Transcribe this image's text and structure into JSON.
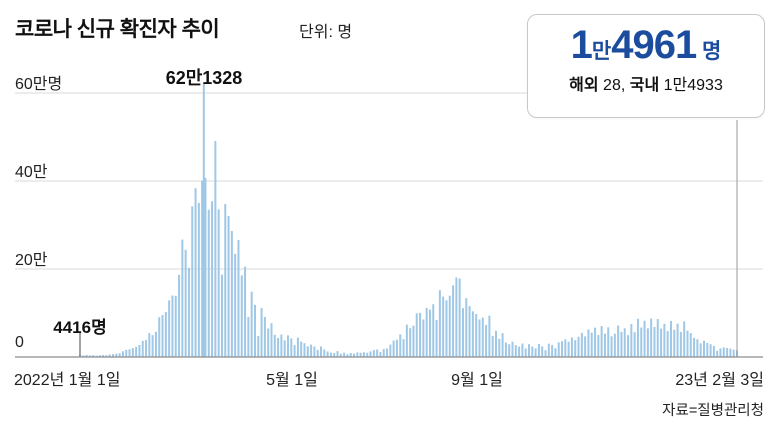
{
  "colors": {
    "bar": "#9fc7e6",
    "accent_blue": "#1b4c9e",
    "grid": "#d8d8d8",
    "axis": "#8c8c8c",
    "connector": "#9a9a9a",
    "leader": "#444444"
  },
  "callout": {
    "num1": "1",
    "man": "만",
    "num2": "4961",
    "unit": " 명",
    "overseas_label": "해외",
    "overseas_value": " 28, ",
    "domestic_label": "국내",
    "domestic_value": " 1만4933"
  },
  "source": "자료=질병관리청",
  "chart_data": {
    "type": "bar",
    "title": "코로나 신규 확진자 추이",
    "unit_label": "단위: 명",
    "ylabel_ticks": [
      "60만명",
      "40만",
      "20만",
      "0"
    ],
    "y_values": [
      600000,
      400000,
      200000,
      0
    ],
    "ylim": [
      0,
      621328
    ],
    "total_days": 398,
    "x_ticks": [
      {
        "label": "2022년 1월 1일",
        "day": 0
      },
      {
        "label": "5월 1일",
        "day": 120
      },
      {
        "label": "9월 1일",
        "day": 243
      },
      {
        "label": "23년 2월 3일",
        "day": 398
      }
    ],
    "annotations": [
      {
        "text": "4416명",
        "day": 0,
        "value": 4416
      },
      {
        "text": "62만1328",
        "day": 75,
        "value": 621328
      }
    ],
    "points": [
      [
        0,
        4416
      ],
      [
        2,
        3833
      ],
      [
        4,
        4875
      ],
      [
        6,
        3717
      ],
      [
        8,
        4384
      ],
      [
        10,
        3094
      ],
      [
        12,
        4165
      ],
      [
        14,
        4542
      ],
      [
        16,
        4193
      ],
      [
        18,
        5805
      ],
      [
        20,
        6601
      ],
      [
        22,
        7513
      ],
      [
        24,
        8571
      ],
      [
        26,
        13012
      ],
      [
        28,
        16096
      ],
      [
        30,
        17532
      ],
      [
        32,
        20270
      ],
      [
        34,
        22907
      ],
      [
        36,
        27443
      ],
      [
        38,
        36719
      ],
      [
        40,
        38691
      ],
      [
        42,
        54122
      ],
      [
        44,
        49567
      ],
      [
        46,
        57177
      ],
      [
        48,
        90443
      ],
      [
        50,
        95362
      ],
      [
        52,
        102211
      ],
      [
        54,
        128717
      ],
      [
        56,
        139626
      ],
      [
        58,
        138993
      ],
      [
        60,
        186740
      ],
      [
        62,
        266853
      ],
      [
        64,
        243628
      ],
      [
        66,
        202721
      ],
      [
        68,
        342446
      ],
      [
        70,
        383664
      ],
      [
        72,
        350190
      ],
      [
        74,
        400741
      ],
      [
        75,
        621328
      ],
      [
        76,
        407017
      ],
      [
        78,
        334708
      ],
      [
        80,
        353980
      ],
      [
        82,
        490881
      ],
      [
        84,
        335580
      ],
      [
        86,
        187213
      ],
      [
        88,
        347554
      ],
      [
        90,
        320743
      ],
      [
        92,
        286294
      ],
      [
        94,
        234301
      ],
      [
        96,
        266135
      ],
      [
        98,
        185566
      ],
      [
        100,
        205333
      ],
      [
        102,
        90928
      ],
      [
        104,
        148443
      ],
      [
        106,
        118504
      ],
      [
        108,
        47743
      ],
      [
        110,
        111319
      ],
      [
        112,
        90867
      ],
      [
        114,
        64725
      ],
      [
        116,
        76787
      ],
      [
        118,
        50568
      ],
      [
        120,
        43286
      ],
      [
        122,
        51131
      ],
      [
        124,
        37771
      ],
      [
        126,
        49064
      ],
      [
        128,
        42296
      ],
      [
        130,
        26714
      ],
      [
        132,
        43925
      ],
      [
        134,
        35117
      ],
      [
        136,
        31352
      ],
      [
        138,
        24155
      ],
      [
        140,
        28130
      ],
      [
        142,
        23956
      ],
      [
        144,
        16134
      ],
      [
        146,
        23947
      ],
      [
        148,
        17191
      ],
      [
        150,
        12542
      ],
      [
        152,
        9896
      ],
      [
        154,
        9315
      ],
      [
        156,
        13358
      ],
      [
        158,
        7382
      ],
      [
        160,
        9835
      ],
      [
        162,
        6246
      ],
      [
        164,
        8992
      ],
      [
        166,
        7497
      ],
      [
        168,
        10463
      ],
      [
        170,
        9591
      ],
      [
        172,
        10715
      ],
      [
        174,
        9528
      ],
      [
        176,
        12693
      ],
      [
        178,
        15743
      ],
      [
        180,
        16980
      ],
      [
        182,
        11382
      ],
      [
        184,
        18147
      ],
      [
        186,
        19371
      ],
      [
        188,
        28305
      ],
      [
        190,
        37360
      ],
      [
        192,
        39196
      ],
      [
        194,
        51318
      ],
      [
        196,
        40342
      ],
      [
        198,
        73582
      ],
      [
        200,
        65433
      ],
      [
        202,
        71170
      ],
      [
        204,
        99327
      ],
      [
        206,
        100285
      ],
      [
        208,
        85320
      ],
      [
        210,
        111789
      ],
      [
        212,
        107894
      ],
      [
        214,
        119922
      ],
      [
        216,
        84128
      ],
      [
        218,
        151792
      ],
      [
        220,
        137241
      ],
      [
        222,
        128714
      ],
      [
        224,
        139339
      ],
      [
        226,
        162810
      ],
      [
        228,
        180803
      ],
      [
        230,
        178574
      ],
      [
        232,
        110944
      ],
      [
        234,
        133856
      ],
      [
        236,
        115638
      ],
      [
        238,
        103961
      ],
      [
        240,
        97604
      ],
      [
        242,
        85295
      ],
      [
        244,
        89586
      ],
      [
        246,
        72646
      ],
      [
        248,
        93981
      ],
      [
        250,
        47917
      ],
      [
        252,
        59463
      ],
      [
        254,
        41286
      ],
      [
        256,
        54319
      ],
      [
        258,
        33009
      ],
      [
        260,
        28975
      ],
      [
        262,
        34764
      ],
      [
        264,
        26957
      ],
      [
        266,
        23597
      ],
      [
        268,
        30535
      ],
      [
        270,
        19431
      ],
      [
        272,
        29108
      ],
      [
        274,
        23583
      ],
      [
        276,
        19442
      ],
      [
        278,
        29503
      ],
      [
        280,
        24129
      ],
      [
        282,
        15465
      ],
      [
        284,
        30416
      ],
      [
        286,
        27071
      ],
      [
        288,
        19838
      ],
      [
        290,
        33248
      ],
      [
        292,
        35924
      ],
      [
        294,
        40096
      ],
      [
        296,
        34855
      ],
      [
        298,
        44543
      ],
      [
        300,
        38415
      ],
      [
        302,
        46102
      ],
      [
        304,
        54766
      ],
      [
        306,
        46896
      ],
      [
        308,
        62472
      ],
      [
        310,
        55365
      ],
      [
        312,
        66587
      ],
      [
        314,
        49986
      ],
      [
        316,
        70324
      ],
      [
        318,
        52987
      ],
      [
        320,
        67415
      ],
      [
        322,
        47028
      ],
      [
        324,
        52885
      ],
      [
        326,
        71476
      ],
      [
        328,
        57079
      ],
      [
        330,
        65253
      ],
      [
        332,
        49735
      ],
      [
        334,
        74714
      ],
      [
        336,
        56431
      ],
      [
        338,
        86852
      ],
      [
        340,
        66930
      ],
      [
        342,
        82384
      ],
      [
        344,
        65202
      ],
      [
        346,
        87517
      ],
      [
        348,
        68168
      ],
      [
        350,
        86346
      ],
      [
        352,
        64387
      ],
      [
        354,
        75611
      ],
      [
        356,
        58742
      ],
      [
        358,
        81927
      ],
      [
        360,
        62029
      ],
      [
        362,
        75744
      ],
      [
        364,
        57072
      ],
      [
        366,
        81056
      ],
      [
        368,
        59945
      ],
      [
        370,
        54343
      ],
      [
        372,
        43449
      ],
      [
        374,
        40280
      ],
      [
        376,
        31106
      ],
      [
        378,
        36938
      ],
      [
        380,
        31711
      ],
      [
        382,
        29084
      ],
      [
        384,
        24873
      ],
      [
        386,
        14144
      ],
      [
        388,
        19538
      ],
      [
        390,
        21795
      ],
      [
        392,
        20420
      ],
      [
        394,
        19046
      ],
      [
        396,
        16512
      ],
      [
        398,
        14961
      ]
    ]
  }
}
